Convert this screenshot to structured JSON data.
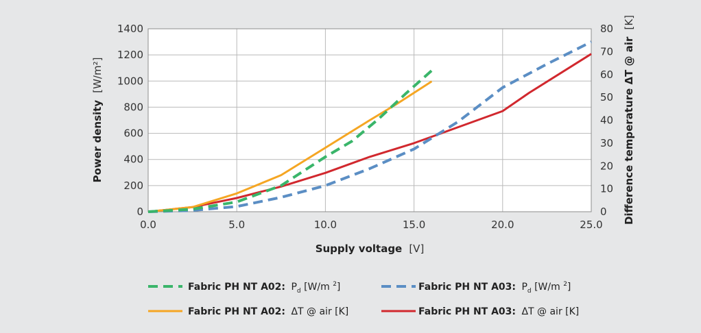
{
  "chart_data": {
    "type": "line",
    "xlabel": {
      "bold": "Supply voltage",
      "unit": "[V]"
    },
    "ylabel_left": {
      "bold": "Power density",
      "unit": "[W/m²]"
    },
    "ylabel_right": {
      "bold": "Difference temperature ΔT @ air",
      "unit": "[K]"
    },
    "xlim": [
      0,
      25
    ],
    "ylim_left": [
      0,
      1400
    ],
    "ylim_right": [
      0,
      80
    ],
    "x_ticks": [
      "0.0",
      "5.0",
      "10.0",
      "15.0",
      "20.0",
      "25.0"
    ],
    "y_left_ticks": [
      "0",
      "200",
      "400",
      "600",
      "800",
      "1000",
      "1200",
      "1400"
    ],
    "y_right_ticks": [
      "0",
      "10",
      "20",
      "30",
      "40",
      "50",
      "60",
      "70",
      "80"
    ],
    "grid": true,
    "legend_placement": "bottom",
    "series": [
      {
        "name": "Fabric PH NT A02: Pd [W/m 2]",
        "legend_bold": "Fabric PH NT A02:",
        "legend_symbol": "P",
        "legend_subscript": "d",
        "legend_unit_pre": " [W/m ",
        "legend_sup": "2",
        "legend_unit_post": "]",
        "axis": "left",
        "color": "#3ab56a",
        "dash": true,
        "points": [
          [
            0,
            0
          ],
          [
            2.5,
            20
          ],
          [
            5,
            75
          ],
          [
            7.5,
            200
          ],
          [
            10,
            420
          ],
          [
            11.5,
            540
          ],
          [
            13,
            710
          ],
          [
            14.5,
            900
          ],
          [
            16,
            1080
          ]
        ]
      },
      {
        "name": "Fabric PH NT A03: Pd [W/m 2]",
        "legend_bold": "Fabric PH NT A03:",
        "legend_symbol": "P",
        "legend_subscript": "d",
        "legend_unit_pre": " [W/m ",
        "legend_sup": "2",
        "legend_unit_post": "]",
        "axis": "left",
        "color": "#5b8ec4",
        "dash": true,
        "points": [
          [
            0,
            0
          ],
          [
            2.5,
            10
          ],
          [
            5,
            40
          ],
          [
            7.5,
            110
          ],
          [
            10,
            200
          ],
          [
            12.5,
            330
          ],
          [
            15,
            480
          ],
          [
            17.5,
            690
          ],
          [
            20,
            950
          ],
          [
            22.5,
            1130
          ],
          [
            25,
            1300
          ]
        ]
      },
      {
        "name": "Fabric PH NT A02: ΔT @ air [K]",
        "legend_bold": "Fabric PH NT A02:",
        "legend_plain": "ΔT @ air [K]",
        "axis": "right",
        "color": "#f5a623",
        "dash": false,
        "points": [
          [
            0,
            0
          ],
          [
            2.5,
            2
          ],
          [
            5,
            8
          ],
          [
            7.5,
            16
          ],
          [
            10,
            28
          ],
          [
            12.5,
            40
          ],
          [
            14,
            47
          ],
          [
            16,
            57
          ]
        ]
      },
      {
        "name": "Fabric PH NT A03: ΔT @ air [K]",
        "legend_bold": "Fabric PH NT A03:",
        "legend_plain": "ΔT @ air [K]",
        "axis": "right",
        "color": "#d1282e",
        "dash": false,
        "points": [
          [
            0,
            0
          ],
          [
            2.5,
            2
          ],
          [
            5,
            6
          ],
          [
            7.5,
            11
          ],
          [
            10,
            17
          ],
          [
            12.5,
            24
          ],
          [
            15,
            30
          ],
          [
            17.5,
            37
          ],
          [
            20,
            44
          ],
          [
            21.5,
            52
          ],
          [
            25,
            69
          ]
        ]
      }
    ]
  }
}
